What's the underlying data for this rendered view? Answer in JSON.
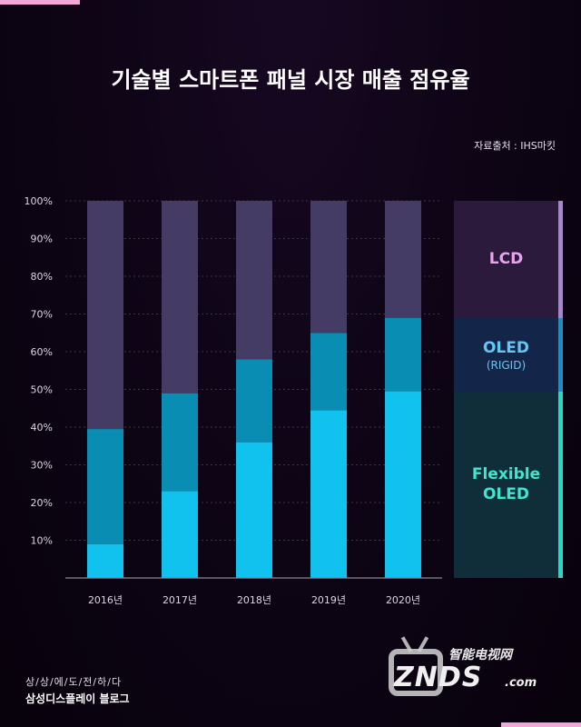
{
  "header": {
    "title": "기술별 스마트폰 패널 시장 매출 점유율",
    "source": "자료출처 : IHS마킷"
  },
  "chart_data": {
    "type": "bar",
    "stacked": true,
    "categories": [
      "2016년",
      "2017년",
      "2018년",
      "2019년",
      "2020년"
    ],
    "series": [
      {
        "name": "Flexible OLED",
        "values": [
          9,
          23,
          36,
          44.5,
          49.5
        ],
        "color": "#12c2ee"
      },
      {
        "name": "OLED (RIGID)",
        "values": [
          30.5,
          26,
          22,
          20.5,
          19.5
        ],
        "color": "#0a8db3"
      },
      {
        "name": "LCD",
        "values": [
          60.5,
          51,
          42,
          35,
          31
        ],
        "color": "#443c64"
      }
    ],
    "y_ticks": [
      "10%",
      "20%",
      "30%",
      "40%",
      "50%",
      "60%",
      "70%",
      "80%",
      "90%",
      "100%"
    ],
    "y_tick_values": [
      10,
      20,
      30,
      40,
      50,
      60,
      70,
      80,
      90,
      100
    ],
    "ylim": [
      0,
      100
    ],
    "grid": "dashed horizontal",
    "legend_position": "right"
  },
  "legend": {
    "lcd": {
      "label": "LCD",
      "color": "#e9a4ee",
      "bg": "#2c1a3c",
      "stripe": "#a983d4"
    },
    "oled_rigid": {
      "label": "OLED",
      "sublabel": "(RIGID)",
      "color": "#62c8f2",
      "bg": "#14254a",
      "stripe": "#1791c4"
    },
    "flexible": {
      "label": "Flexible\nOLED",
      "color": "#3fe6cf",
      "bg": "#0f2e3a",
      "stripe": "#25d9c8"
    }
  },
  "footer": {
    "tagline": "상/상/에/도/전/하/다",
    "blog": "삼성디스플레이 블로그"
  },
  "watermark": {
    "cn": "智能电视网",
    "main": "ZNDS",
    "domain": ".com"
  }
}
